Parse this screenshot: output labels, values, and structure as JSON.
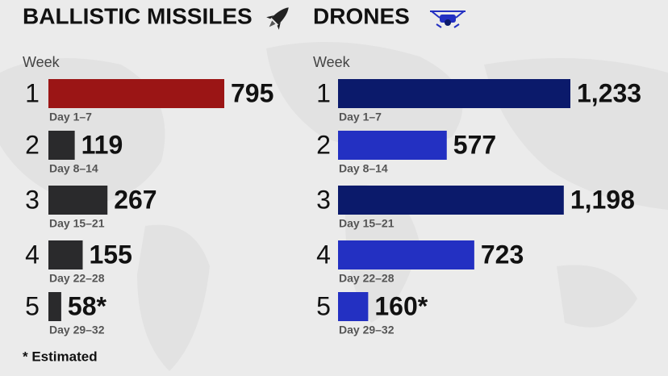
{
  "chart_data": [
    {
      "type": "bar",
      "orientation": "horizontal",
      "title": "BALLISTIC MISSILES",
      "category_axis_label": "Week",
      "categories": [
        "1",
        "2",
        "3",
        "4",
        "5"
      ],
      "sublabels": [
        "Day 1–7",
        "Day 8–14",
        "Day 15–21",
        "Day 22–28",
        "Day 29–32"
      ],
      "values": [
        795,
        119,
        267,
        155,
        58
      ],
      "value_labels": [
        "795",
        "119",
        "267",
        "155",
        "58*"
      ],
      "colors": [
        "#9b1515",
        "#2a2a2c",
        "#2a2a2c",
        "#2a2a2c",
        "#2a2a2c"
      ]
    },
    {
      "type": "bar",
      "orientation": "horizontal",
      "title": "DRONES",
      "category_axis_label": "Week",
      "categories": [
        "1",
        "2",
        "3",
        "4",
        "5"
      ],
      "sublabels": [
        "Day 1–7",
        "Day 8–14",
        "Day 15–21",
        "Day 22–28",
        "Day 29–32"
      ],
      "values": [
        1233,
        577,
        1198,
        723,
        160
      ],
      "value_labels": [
        "1,233",
        "577",
        "1,198",
        "723",
        "160*"
      ],
      "colors": [
        "#0b1a6b",
        "#2330c2",
        "#0b1a6b",
        "#2330c2",
        "#2330c2"
      ]
    }
  ],
  "footnote": "* Estimated"
}
